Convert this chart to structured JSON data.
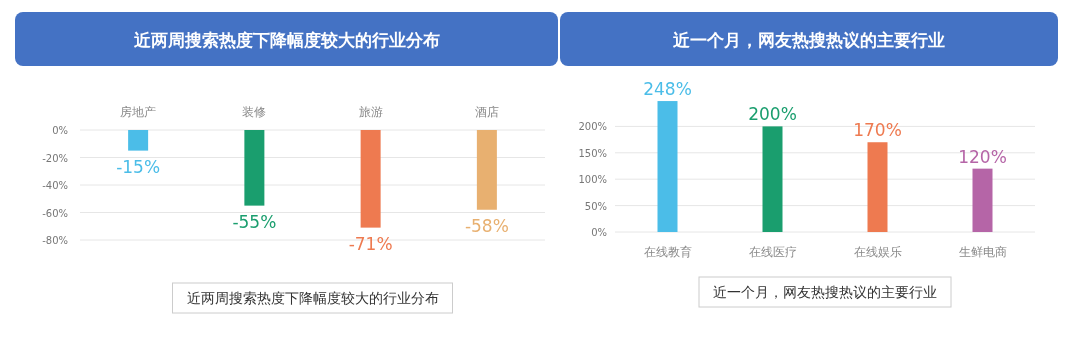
{
  "chart_data": [
    {
      "type": "bar",
      "title": "近两周搜索热度下降幅度较大的行业分布",
      "categories": [
        "房地产",
        "装修",
        "旅游",
        "酒店"
      ],
      "values": [
        -15,
        -55,
        -71,
        -58
      ],
      "colors": [
        "#4bbde8",
        "#1a9e6e",
        "#ee7a50",
        "#e8b070"
      ],
      "value_labels": [
        "-15%",
        "-55%",
        "-71%",
        "-58%"
      ],
      "ylim": [
        -80,
        0
      ],
      "yticks": [
        {
          "value": 0,
          "label": "0%"
        },
        {
          "value": -20,
          "label": "-20%"
        },
        {
          "value": -40,
          "label": "-40%"
        },
        {
          "value": -60,
          "label": "-60%"
        },
        {
          "value": -80,
          "label": "-80%"
        }
      ],
      "grid": "y",
      "annotations": [
        "近两周搜索热度下降幅度较大的行业分布"
      ]
    },
    {
      "type": "bar",
      "title": "近一个月，网友热搜热议的主要行业",
      "categories": [
        "在线教育",
        "在线医疗",
        "在线娱乐",
        "生鲜电商"
      ],
      "values": [
        248,
        200,
        170,
        120
      ],
      "colors": [
        "#4bbde8",
        "#1a9e6e",
        "#ee7a50",
        "#b565a7"
      ],
      "value_labels": [
        "248%",
        "200%",
        "170%",
        "120%"
      ],
      "ylim": [
        0,
        250
      ],
      "yticks": [
        {
          "value": 0,
          "label": "0%"
        },
        {
          "value": 50,
          "label": "50%"
        },
        {
          "value": 100,
          "label": "100%"
        },
        {
          "value": 150,
          "label": "150%"
        },
        {
          "value": 200,
          "label": "200%"
        }
      ],
      "grid": "y",
      "annotations": [
        "近一个月，网友热搜热议的主要行业"
      ]
    }
  ]
}
